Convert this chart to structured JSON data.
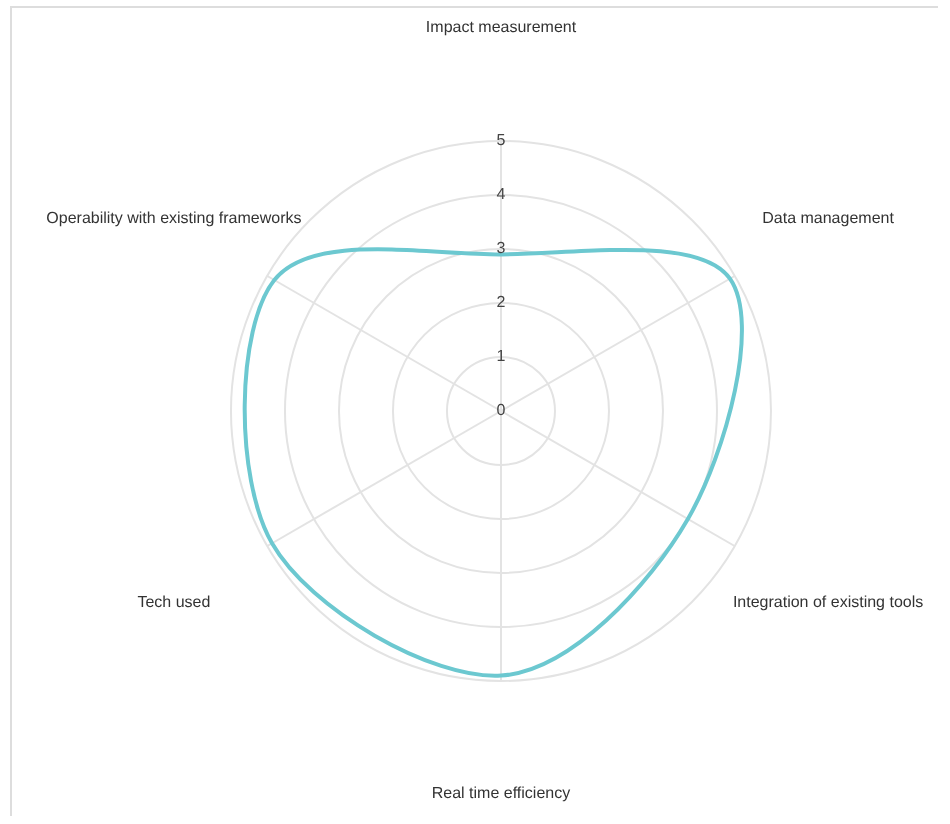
{
  "chart_data": {
    "type": "radar",
    "categories": [
      "Impact measurement",
      "Data management",
      "Integration of existing tools",
      "Real time efficiency",
      "Tech used",
      "Operability with existing frameworks"
    ],
    "series": [
      {
        "color": "#6cc8d0",
        "values": [
          2.9,
          4.9,
          4.0,
          4.9,
          4.9,
          4.85
        ]
      }
    ],
    "ylim": [
      0,
      5
    ],
    "yticks": [
      0,
      1,
      2,
      3,
      4,
      5
    ],
    "grid": true
  }
}
